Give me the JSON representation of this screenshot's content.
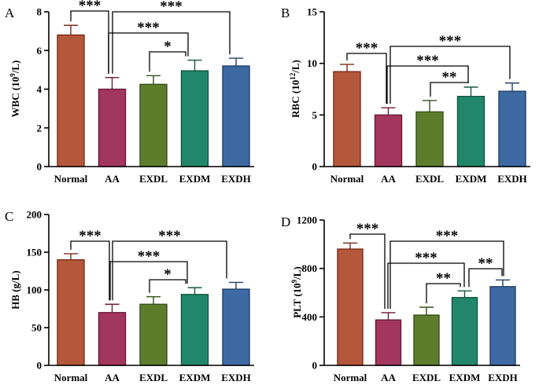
{
  "chart_data": [
    {
      "panel": "A",
      "type": "bar",
      "title": "",
      "xlabel": "",
      "ylabel_main": "WBC (10",
      "ylabel_sup": "9",
      "ylabel_end": "/L)",
      "categories": [
        "Normal",
        "AA",
        "EXDL",
        "EXDM",
        "EXDH"
      ],
      "values": [
        6.8,
        4.0,
        4.25,
        4.95,
        5.2
      ],
      "errors": [
        0.5,
        0.6,
        0.45,
        0.55,
        0.4
      ],
      "ylim": [
        0,
        8
      ],
      "yticks": [
        "0",
        "2",
        "4",
        "6",
        "8"
      ],
      "significance": [
        {
          "from": "Normal",
          "to": "AA",
          "label": "***"
        },
        {
          "from": "AA",
          "to": "EXDH",
          "label": "***"
        },
        {
          "from": "AA",
          "to": "EXDM",
          "label": "***"
        },
        {
          "from": "EXDL",
          "to": "EXDM",
          "label": "*"
        }
      ]
    },
    {
      "panel": "B",
      "type": "bar",
      "title": "",
      "xlabel": "",
      "ylabel_main": "RBC (10",
      "ylabel_sup": "12",
      "ylabel_end": "/L)",
      "categories": [
        "Normal",
        "AA",
        "EXDL",
        "EXDM",
        "EXDH"
      ],
      "values": [
        9.2,
        5.0,
        5.3,
        6.8,
        7.3
      ],
      "errors": [
        0.7,
        0.7,
        1.1,
        0.9,
        0.8
      ],
      "ylim": [
        0,
        15
      ],
      "yticks": [
        "0",
        "5",
        "10",
        "15"
      ],
      "significance": [
        {
          "from": "Normal",
          "to": "AA",
          "label": "***"
        },
        {
          "from": "AA",
          "to": "EXDH",
          "label": "***"
        },
        {
          "from": "AA",
          "to": "EXDM",
          "label": "***"
        },
        {
          "from": "EXDL",
          "to": "EXDM",
          "label": "**"
        }
      ]
    },
    {
      "panel": "C",
      "type": "bar",
      "title": "",
      "xlabel": "",
      "ylabel_main": "HB (g/L)",
      "ylabel_sup": "",
      "ylabel_end": "",
      "categories": [
        "Normal",
        "AA",
        "EXDL",
        "EXDM",
        "EXDH"
      ],
      "values": [
        140,
        70,
        81,
        94,
        101
      ],
      "errors": [
        8,
        11,
        10,
        9,
        9
      ],
      "ylim": [
        0,
        200
      ],
      "yticks": [
        "0",
        "50",
        "100",
        "150",
        "200"
      ],
      "significance": [
        {
          "from": "Normal",
          "to": "AA",
          "label": "***"
        },
        {
          "from": "AA",
          "to": "EXDH",
          "label": "***"
        },
        {
          "from": "AA",
          "to": "EXDM",
          "label": "***"
        },
        {
          "from": "EXDL",
          "to": "EXDM",
          "label": "*"
        }
      ]
    },
    {
      "panel": "D",
      "type": "bar",
      "title": "",
      "xlabel": "",
      "ylabel_main": "PLT (10",
      "ylabel_sup": "9",
      "ylabel_end": "/L)",
      "categories": [
        "Normal",
        "AA",
        "EXDL",
        "EXDM",
        "EXDH"
      ],
      "values": [
        960,
        375,
        415,
        560,
        650
      ],
      "errors": [
        50,
        60,
        65,
        55,
        55
      ],
      "ylim": [
        0,
        1200
      ],
      "yticks": [
        "0",
        "400",
        "800",
        "1200"
      ],
      "significance": [
        {
          "from": "Normal",
          "to": "AA",
          "label": "***"
        },
        {
          "from": "AA",
          "to": "EXDH",
          "label": "***"
        },
        {
          "from": "AA",
          "to": "EXDM",
          "label": "***"
        },
        {
          "from": "EXDL",
          "to": "EXDM",
          "label": "**"
        },
        {
          "from": "EXDM",
          "to": "EXDH",
          "label": "**"
        }
      ]
    }
  ],
  "colors": {
    "Normal": {
      "fill": "#b5573a",
      "stroke": "#7a2b17"
    },
    "AA": {
      "fill": "#a3365d",
      "stroke": "#6b1935"
    },
    "EXDL": {
      "fill": "#5d7d2c",
      "stroke": "#36501a"
    },
    "EXDM": {
      "fill": "#22866b",
      "stroke": "#11573f"
    },
    "EXDH": {
      "fill": "#3d6aa3",
      "stroke": "#223f6a"
    }
  }
}
